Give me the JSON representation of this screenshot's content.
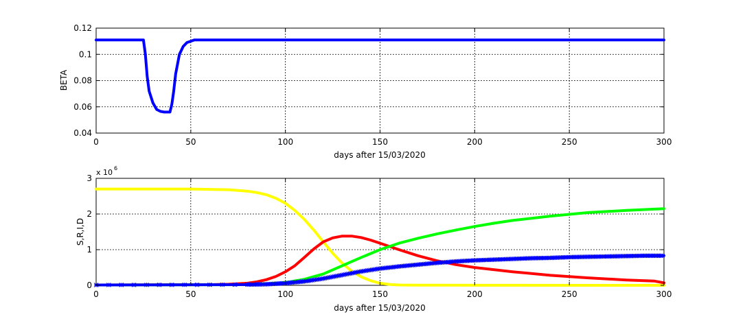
{
  "chart_data": [
    {
      "type": "line",
      "xlabel": "days after 15/03/2020",
      "ylabel": "BETA",
      "xlim": [
        0,
        300
      ],
      "ylim": [
        0.04,
        0.12
      ],
      "xticks": [
        "0",
        "50",
        "100",
        "150",
        "200",
        "250",
        "300"
      ],
      "yticks": [
        "0.04",
        "0.06",
        "0.08",
        "0.1",
        "0.12"
      ],
      "grid": true,
      "series": [
        {
          "color": "#0000ff",
          "x": [
            0,
            25,
            26,
            27,
            28,
            30,
            32,
            34,
            36,
            38,
            39,
            40,
            41,
            42,
            44,
            46,
            48,
            50,
            52,
            55,
            300
          ],
          "y": [
            0.111,
            0.111,
            0.1,
            0.083,
            0.072,
            0.063,
            0.058,
            0.0565,
            0.056,
            0.056,
            0.056,
            0.062,
            0.072,
            0.085,
            0.1,
            0.106,
            0.109,
            0.11,
            0.111,
            0.111,
            0.111
          ]
        }
      ]
    },
    {
      "type": "line",
      "xlabel": "days after 15/03/2020",
      "ylabel": "S,R,I,D",
      "exponent_label": "x 10",
      "exponent": "6",
      "xlim": [
        0,
        300
      ],
      "ylim": [
        0,
        3
      ],
      "xticks": [
        "0",
        "50",
        "100",
        "150",
        "200",
        "250",
        "300"
      ],
      "yticks": [
        "0",
        "1",
        "2",
        "3"
      ],
      "grid": true,
      "series": [
        {
          "color": "#ffff00",
          "x": [
            0,
            50,
            60,
            70,
            80,
            85,
            90,
            95,
            100,
            105,
            110,
            115,
            120,
            125,
            130,
            135,
            140,
            145,
            150,
            155,
            160,
            170,
            180,
            200,
            300
          ],
          "y": [
            2.7,
            2.7,
            2.69,
            2.68,
            2.64,
            2.6,
            2.54,
            2.44,
            2.3,
            2.1,
            1.85,
            1.55,
            1.22,
            0.9,
            0.62,
            0.4,
            0.24,
            0.13,
            0.06,
            0.025,
            0.01,
            0.005,
            0.003,
            0.002,
            0.0
          ]
        },
        {
          "color": "#ff0000",
          "x": [
            0,
            60,
            70,
            80,
            85,
            90,
            95,
            100,
            105,
            110,
            115,
            120,
            125,
            130,
            135,
            140,
            145,
            150,
            160,
            170,
            180,
            190,
            200,
            220,
            240,
            260,
            280,
            295,
            300
          ],
          "y": [
            0.01,
            0.02,
            0.03,
            0.06,
            0.1,
            0.16,
            0.25,
            0.38,
            0.55,
            0.78,
            1.02,
            1.22,
            1.33,
            1.38,
            1.38,
            1.34,
            1.27,
            1.18,
            1.0,
            0.83,
            0.69,
            0.58,
            0.5,
            0.38,
            0.28,
            0.21,
            0.15,
            0.12,
            0.07
          ]
        },
        {
          "color": "#00ff00",
          "x": [
            0,
            80,
            90,
            100,
            110,
            120,
            130,
            140,
            150,
            160,
            170,
            180,
            190,
            200,
            210,
            220,
            240,
            260,
            280,
            300
          ],
          "y": [
            0.01,
            0.02,
            0.04,
            0.08,
            0.17,
            0.32,
            0.55,
            0.78,
            1.0,
            1.18,
            1.32,
            1.44,
            1.55,
            1.65,
            1.74,
            1.82,
            1.94,
            2.04,
            2.1,
            2.15
          ]
        },
        {
          "color": "#0000ff",
          "marker": "star",
          "x": [
            0,
            80,
            90,
            100,
            110,
            120,
            130,
            140,
            150,
            160,
            170,
            180,
            190,
            200,
            210,
            220,
            230,
            240,
            250,
            260,
            270,
            280,
            290,
            300
          ],
          "y": [
            0.01,
            0.02,
            0.03,
            0.06,
            0.11,
            0.19,
            0.29,
            0.39,
            0.47,
            0.53,
            0.58,
            0.63,
            0.67,
            0.7,
            0.72,
            0.74,
            0.76,
            0.77,
            0.79,
            0.8,
            0.81,
            0.82,
            0.83,
            0.83
          ]
        }
      ]
    }
  ]
}
